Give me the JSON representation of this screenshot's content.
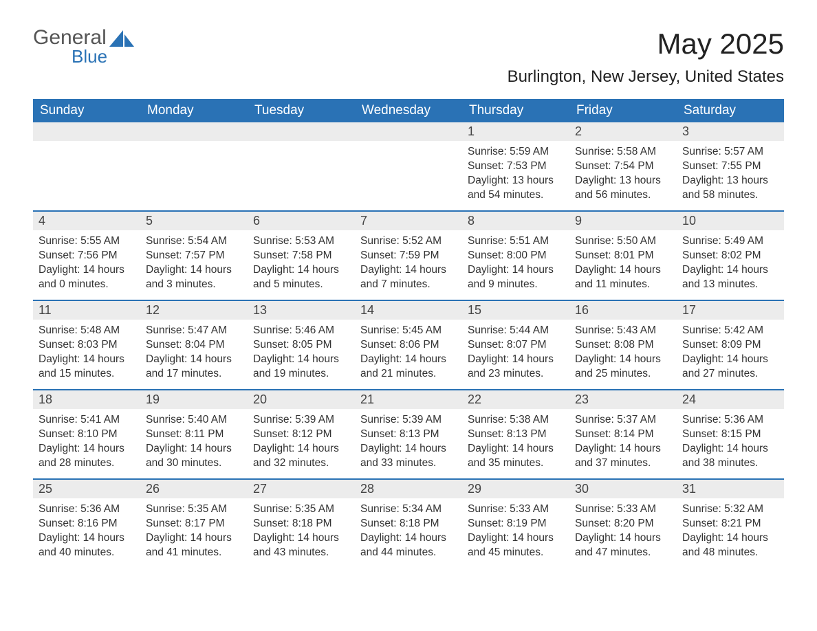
{
  "logo": {
    "word1": "General",
    "word2": "Blue"
  },
  "title": {
    "month": "May 2025",
    "location": "Burlington, New Jersey, United States"
  },
  "calendar": {
    "header_bg": "#2a72b5",
    "header_text_color": "#ffffff",
    "daynum_bg": "#ececec",
    "daynum_color": "#444444",
    "body_text_color": "#333333",
    "border_color": "#2a72b5",
    "font_size_header": 19,
    "font_size_daynum": 18,
    "font_size_body": 15.5,
    "days": [
      "Sunday",
      "Monday",
      "Tuesday",
      "Wednesday",
      "Thursday",
      "Friday",
      "Saturday"
    ],
    "weeks": [
      [
        null,
        null,
        null,
        null,
        {
          "n": "1",
          "sunrise": "Sunrise: 5:59 AM",
          "sunset": "Sunset: 7:53 PM",
          "d1": "Daylight: 13 hours",
          "d2": "and 54 minutes."
        },
        {
          "n": "2",
          "sunrise": "Sunrise: 5:58 AM",
          "sunset": "Sunset: 7:54 PM",
          "d1": "Daylight: 13 hours",
          "d2": "and 56 minutes."
        },
        {
          "n": "3",
          "sunrise": "Sunrise: 5:57 AM",
          "sunset": "Sunset: 7:55 PM",
          "d1": "Daylight: 13 hours",
          "d2": "and 58 minutes."
        }
      ],
      [
        {
          "n": "4",
          "sunrise": "Sunrise: 5:55 AM",
          "sunset": "Sunset: 7:56 PM",
          "d1": "Daylight: 14 hours",
          "d2": "and 0 minutes."
        },
        {
          "n": "5",
          "sunrise": "Sunrise: 5:54 AM",
          "sunset": "Sunset: 7:57 PM",
          "d1": "Daylight: 14 hours",
          "d2": "and 3 minutes."
        },
        {
          "n": "6",
          "sunrise": "Sunrise: 5:53 AM",
          "sunset": "Sunset: 7:58 PM",
          "d1": "Daylight: 14 hours",
          "d2": "and 5 minutes."
        },
        {
          "n": "7",
          "sunrise": "Sunrise: 5:52 AM",
          "sunset": "Sunset: 7:59 PM",
          "d1": "Daylight: 14 hours",
          "d2": "and 7 minutes."
        },
        {
          "n": "8",
          "sunrise": "Sunrise: 5:51 AM",
          "sunset": "Sunset: 8:00 PM",
          "d1": "Daylight: 14 hours",
          "d2": "and 9 minutes."
        },
        {
          "n": "9",
          "sunrise": "Sunrise: 5:50 AM",
          "sunset": "Sunset: 8:01 PM",
          "d1": "Daylight: 14 hours",
          "d2": "and 11 minutes."
        },
        {
          "n": "10",
          "sunrise": "Sunrise: 5:49 AM",
          "sunset": "Sunset: 8:02 PM",
          "d1": "Daylight: 14 hours",
          "d2": "and 13 minutes."
        }
      ],
      [
        {
          "n": "11",
          "sunrise": "Sunrise: 5:48 AM",
          "sunset": "Sunset: 8:03 PM",
          "d1": "Daylight: 14 hours",
          "d2": "and 15 minutes."
        },
        {
          "n": "12",
          "sunrise": "Sunrise: 5:47 AM",
          "sunset": "Sunset: 8:04 PM",
          "d1": "Daylight: 14 hours",
          "d2": "and 17 minutes."
        },
        {
          "n": "13",
          "sunrise": "Sunrise: 5:46 AM",
          "sunset": "Sunset: 8:05 PM",
          "d1": "Daylight: 14 hours",
          "d2": "and 19 minutes."
        },
        {
          "n": "14",
          "sunrise": "Sunrise: 5:45 AM",
          "sunset": "Sunset: 8:06 PM",
          "d1": "Daylight: 14 hours",
          "d2": "and 21 minutes."
        },
        {
          "n": "15",
          "sunrise": "Sunrise: 5:44 AM",
          "sunset": "Sunset: 8:07 PM",
          "d1": "Daylight: 14 hours",
          "d2": "and 23 minutes."
        },
        {
          "n": "16",
          "sunrise": "Sunrise: 5:43 AM",
          "sunset": "Sunset: 8:08 PM",
          "d1": "Daylight: 14 hours",
          "d2": "and 25 minutes."
        },
        {
          "n": "17",
          "sunrise": "Sunrise: 5:42 AM",
          "sunset": "Sunset: 8:09 PM",
          "d1": "Daylight: 14 hours",
          "d2": "and 27 minutes."
        }
      ],
      [
        {
          "n": "18",
          "sunrise": "Sunrise: 5:41 AM",
          "sunset": "Sunset: 8:10 PM",
          "d1": "Daylight: 14 hours",
          "d2": "and 28 minutes."
        },
        {
          "n": "19",
          "sunrise": "Sunrise: 5:40 AM",
          "sunset": "Sunset: 8:11 PM",
          "d1": "Daylight: 14 hours",
          "d2": "and 30 minutes."
        },
        {
          "n": "20",
          "sunrise": "Sunrise: 5:39 AM",
          "sunset": "Sunset: 8:12 PM",
          "d1": "Daylight: 14 hours",
          "d2": "and 32 minutes."
        },
        {
          "n": "21",
          "sunrise": "Sunrise: 5:39 AM",
          "sunset": "Sunset: 8:13 PM",
          "d1": "Daylight: 14 hours",
          "d2": "and 33 minutes."
        },
        {
          "n": "22",
          "sunrise": "Sunrise: 5:38 AM",
          "sunset": "Sunset: 8:13 PM",
          "d1": "Daylight: 14 hours",
          "d2": "and 35 minutes."
        },
        {
          "n": "23",
          "sunrise": "Sunrise: 5:37 AM",
          "sunset": "Sunset: 8:14 PM",
          "d1": "Daylight: 14 hours",
          "d2": "and 37 minutes."
        },
        {
          "n": "24",
          "sunrise": "Sunrise: 5:36 AM",
          "sunset": "Sunset: 8:15 PM",
          "d1": "Daylight: 14 hours",
          "d2": "and 38 minutes."
        }
      ],
      [
        {
          "n": "25",
          "sunrise": "Sunrise: 5:36 AM",
          "sunset": "Sunset: 8:16 PM",
          "d1": "Daylight: 14 hours",
          "d2": "and 40 minutes."
        },
        {
          "n": "26",
          "sunrise": "Sunrise: 5:35 AM",
          "sunset": "Sunset: 8:17 PM",
          "d1": "Daylight: 14 hours",
          "d2": "and 41 minutes."
        },
        {
          "n": "27",
          "sunrise": "Sunrise: 5:35 AM",
          "sunset": "Sunset: 8:18 PM",
          "d1": "Daylight: 14 hours",
          "d2": "and 43 minutes."
        },
        {
          "n": "28",
          "sunrise": "Sunrise: 5:34 AM",
          "sunset": "Sunset: 8:18 PM",
          "d1": "Daylight: 14 hours",
          "d2": "and 44 minutes."
        },
        {
          "n": "29",
          "sunrise": "Sunrise: 5:33 AM",
          "sunset": "Sunset: 8:19 PM",
          "d1": "Daylight: 14 hours",
          "d2": "and 45 minutes."
        },
        {
          "n": "30",
          "sunrise": "Sunrise: 5:33 AM",
          "sunset": "Sunset: 8:20 PM",
          "d1": "Daylight: 14 hours",
          "d2": "and 47 minutes."
        },
        {
          "n": "31",
          "sunrise": "Sunrise: 5:32 AM",
          "sunset": "Sunset: 8:21 PM",
          "d1": "Daylight: 14 hours",
          "d2": "and 48 minutes."
        }
      ]
    ]
  }
}
